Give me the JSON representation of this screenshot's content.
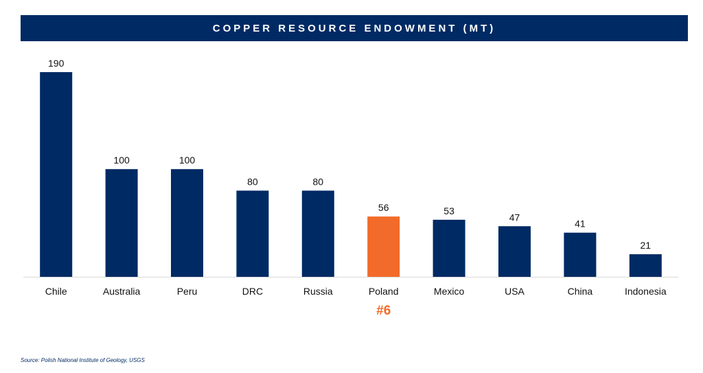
{
  "chart_data": {
    "type": "bar",
    "title": "COPPER RESOURCE ENDOWMENT (MT)",
    "categories": [
      "Chile",
      "Australia",
      "Peru",
      "DRC",
      "Russia",
      "Poland",
      "Mexico",
      "USA",
      "China",
      "Indonesia"
    ],
    "values": [
      190,
      100,
      100,
      80,
      80,
      56,
      53,
      47,
      41,
      21
    ],
    "highlight": {
      "category": "Poland",
      "index": 5,
      "annotation": "#6"
    },
    "ylim": [
      0,
      190
    ],
    "grid": false,
    "colors": {
      "bar": "#002a64",
      "highlight": "#f26b2a",
      "title_bg": "#002a64"
    }
  },
  "source": "Source: Polish National Institute of Geology, USGS"
}
